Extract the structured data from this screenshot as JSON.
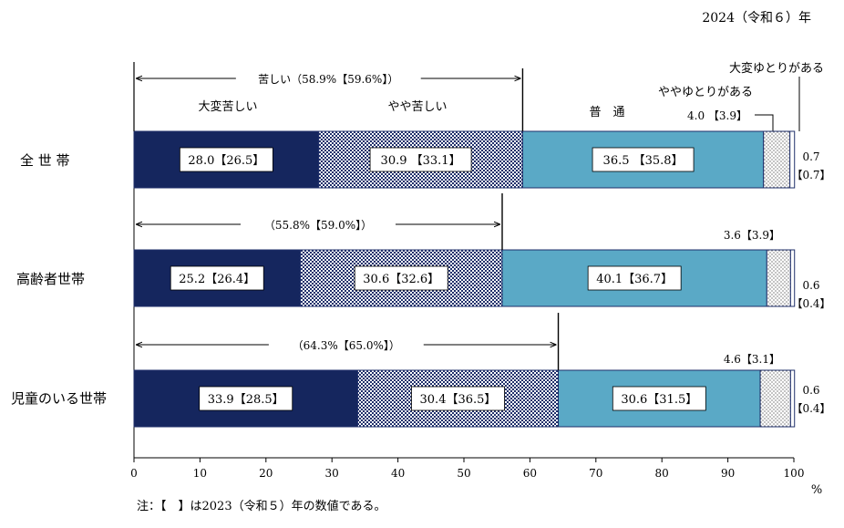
{
  "year_label": "2024（令和６）年",
  "note": "注：【　】は2023（令和５）年の数値である。",
  "chart_data": {
    "type": "bar",
    "stacked": true,
    "orientation": "horizontal",
    "categories": [
      "全 世 帯",
      "高齢者世帯",
      "児童のいる世帯"
    ],
    "series": [
      {
        "name": "大変苦しい",
        "color": "#15265e",
        "pattern": "solid",
        "values": [
          28.0,
          25.2,
          33.9
        ],
        "labels": [
          "28.0【26.5】",
          "25.2【26.4】",
          "33.9【28.5】"
        ]
      },
      {
        "name": "やや苦しい",
        "color": "#1f2f6a",
        "pattern": "checker",
        "values": [
          30.9,
          30.6,
          30.4
        ],
        "labels": [
          "30.9 【33.1】",
          "30.6【32.6】",
          "30.4【36.5】"
        ]
      },
      {
        "name": "普　通",
        "color": "#5aa9c6",
        "pattern": "solid",
        "values": [
          36.5,
          40.1,
          30.6
        ],
        "labels": [
          "36.5 【35.8】",
          "40.1【36.7】",
          "30.6【31.5】"
        ]
      },
      {
        "name": "ややゆとりがある",
        "color": "#ffffff",
        "pattern": "dots",
        "values": [
          4.0,
          3.6,
          4.6
        ],
        "labels": [
          "4.0 【3.9】",
          "3.6【3.9】",
          "4.6【3.1】"
        ]
      },
      {
        "name": "大変ゆとりがある",
        "color": "#ffffff",
        "pattern": "solid",
        "values": [
          0.7,
          0.6,
          0.6
        ],
        "labels": [
          "0.7",
          "0.6",
          "0.6"
        ],
        "prev_labels": [
          "【0.7】",
          "【0.4】",
          "【0.4】"
        ]
      }
    ],
    "hardship_totals": [
      "苦しい（58.9%【59.6%】）",
      "（55.8%【59.0%】）",
      "（64.3%【65.0%】）"
    ],
    "hardship_values": [
      58.9,
      55.8,
      64.3
    ],
    "xlim": [
      0,
      100
    ],
    "xticks": [
      "0",
      "10",
      "20",
      "30",
      "40",
      "50",
      "60",
      "70",
      "80",
      "90",
      "100"
    ],
    "xunit": "%"
  }
}
